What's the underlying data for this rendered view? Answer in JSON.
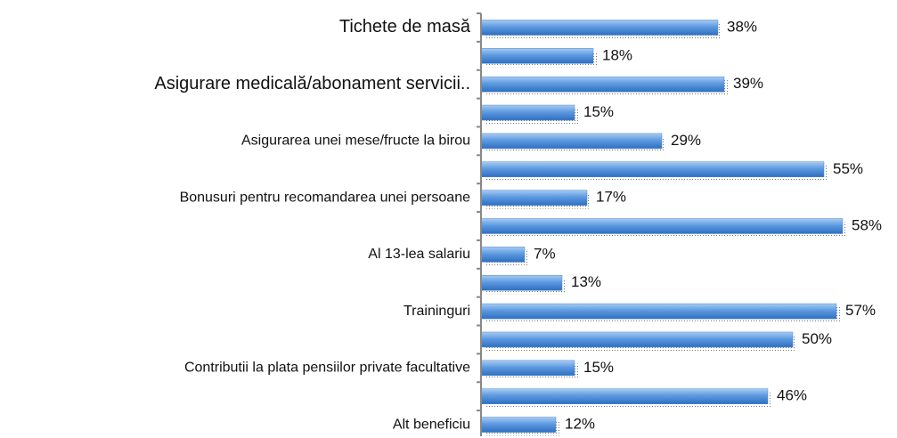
{
  "chart_data": {
    "type": "bar",
    "orientation": "horizontal",
    "categories": [
      "Tichete de masă",
      null,
      "Asigurare medicală/abonament servicii..",
      null,
      "Asigurarea unei mese/fructe la birou",
      null,
      "Bonusuri pentru recomandarea unei persoane",
      null,
      "Al 13-lea salariu",
      null,
      "Traininguri",
      null,
      "Contributii la plata pensiilor private facultative",
      null,
      "Alt beneficiu"
    ],
    "values": [
      38,
      18,
      39,
      15,
      29,
      55,
      17,
      58,
      7,
      13,
      57,
      50,
      15,
      46,
      12
    ],
    "value_labels": [
      "38%",
      "18%",
      "39%",
      "15%",
      "29%",
      "55%",
      "17%",
      "58%",
      "7%",
      "13%",
      "57%",
      "50%",
      "15%",
      "46%",
      "12%"
    ],
    "color": "#4a8bd6",
    "xlim": [
      0,
      60
    ]
  }
}
